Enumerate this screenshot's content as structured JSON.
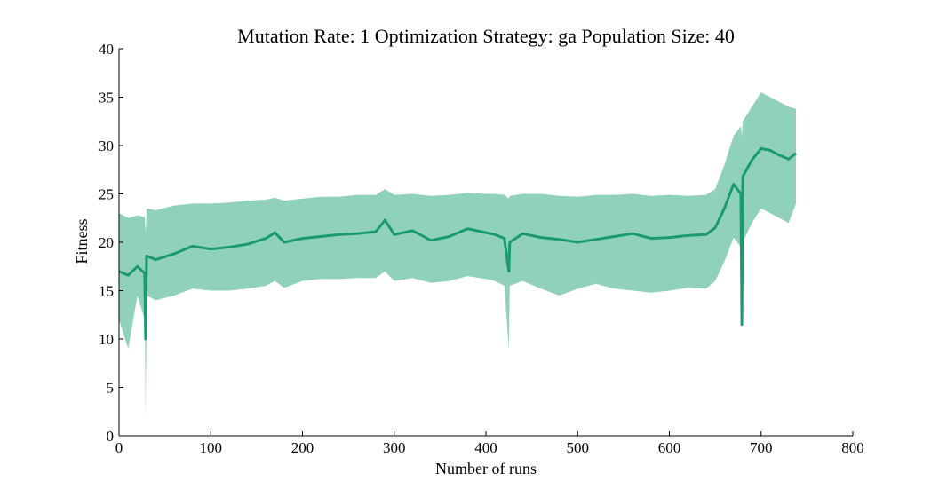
{
  "chart_data": {
    "type": "line",
    "title": "Mutation Rate: 1 Optimization Strategy: ga Population Size: 40",
    "xlabel": "Number of runs",
    "ylabel": "Fitness",
    "xlim": [
      0,
      800
    ],
    "ylim": [
      0,
      40
    ],
    "xticks": [
      "0",
      "100",
      "200",
      "300",
      "400",
      "500",
      "600",
      "700",
      "800"
    ],
    "yticks": [
      "0",
      "5",
      "10",
      "15",
      "20",
      "25",
      "30",
      "35",
      "40"
    ],
    "grid": false,
    "legend": "none",
    "colors": {
      "line": "#1a9a73",
      "band": "#8fd1b9"
    },
    "series": [
      {
        "x": [
          0,
          10,
          20,
          28,
          29,
          30,
          40,
          60,
          80,
          100,
          120,
          140,
          160,
          170,
          180,
          200,
          220,
          240,
          260,
          280,
          290,
          300,
          320,
          340,
          360,
          380,
          400,
          410,
          420,
          425,
          426,
          440,
          460,
          480,
          500,
          520,
          540,
          560,
          580,
          600,
          620,
          640,
          650,
          660,
          670,
          678,
          679,
          680,
          690,
          700,
          710,
          720,
          730,
          738
        ],
        "mean": [
          17.0,
          16.6,
          17.5,
          16.8,
          10.0,
          18.6,
          18.2,
          18.8,
          19.6,
          19.3,
          19.5,
          19.8,
          20.4,
          21.0,
          20.0,
          20.4,
          20.6,
          20.8,
          20.9,
          21.1,
          22.3,
          20.8,
          21.2,
          20.2,
          20.6,
          21.4,
          21.0,
          20.8,
          20.4,
          17.0,
          20.0,
          20.9,
          20.5,
          20.3,
          20.0,
          20.3,
          20.6,
          20.9,
          20.4,
          20.5,
          20.7,
          20.8,
          21.5,
          23.5,
          26.0,
          25.0,
          11.5,
          26.8,
          28.5,
          29.7,
          29.5,
          29.0,
          28.6,
          29.2
        ],
        "upper": [
          23.0,
          22.5,
          22.8,
          22.6,
          21.0,
          23.5,
          23.3,
          23.8,
          24.0,
          24.0,
          24.1,
          24.3,
          24.4,
          24.6,
          24.3,
          24.5,
          24.7,
          24.7,
          24.9,
          24.9,
          25.5,
          24.9,
          25.0,
          24.8,
          24.9,
          25.1,
          25.0,
          25.0,
          24.9,
          24.5,
          24.8,
          25.0,
          25.0,
          24.8,
          24.7,
          24.9,
          24.9,
          25.0,
          24.8,
          24.9,
          24.8,
          24.9,
          25.5,
          28.0,
          31.0,
          32.0,
          31.0,
          32.5,
          34.0,
          35.5,
          35.0,
          34.5,
          34.0,
          33.8
        ],
        "lower": [
          12.0,
          9.0,
          14.5,
          12.0,
          2.0,
          14.5,
          14.0,
          14.5,
          15.2,
          15.0,
          15.0,
          15.2,
          15.5,
          16.0,
          15.3,
          16.0,
          16.2,
          16.2,
          16.3,
          16.3,
          17.0,
          16.0,
          16.3,
          15.8,
          16.0,
          16.5,
          16.2,
          16.0,
          15.5,
          9.0,
          15.5,
          16.0,
          15.2,
          14.5,
          15.2,
          15.7,
          15.2,
          15.0,
          14.8,
          15.0,
          15.3,
          15.2,
          16.0,
          18.0,
          20.5,
          19.5,
          11.0,
          20.0,
          22.0,
          23.5,
          23.0,
          22.5,
          22.0,
          24.0
        ]
      }
    ]
  }
}
